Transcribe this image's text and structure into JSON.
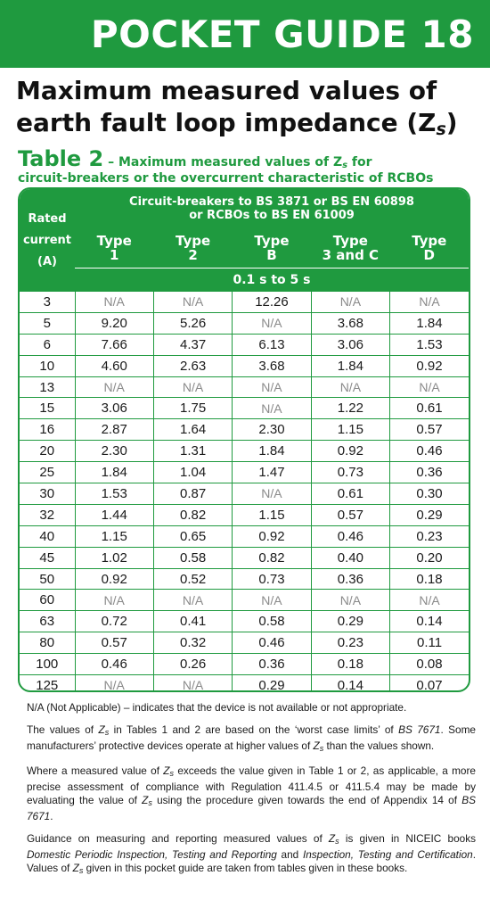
{
  "banner": {
    "title": "POCKET GUIDE 18"
  },
  "title": {
    "text": "Maximum measured values of earth fault loop impedance (Z",
    "subscript": "s",
    "close": ")"
  },
  "table_heading": {
    "label": "Table 2",
    "desc_pre": " – Maximum measured values of Z",
    "desc_sub": "s",
    "desc_post": " for",
    "line2": "circuit-breakers or the overcurrent characteristic of RCBOs"
  },
  "table": {
    "rated_header": [
      "Rated",
      "current",
      "(A)"
    ],
    "span_header": [
      "Circuit-breakers to BS 3871 or BS EN 60898",
      "or RCBOs to BS EN 61009"
    ],
    "types": [
      {
        "line1": "Type",
        "line2": "1"
      },
      {
        "line1": "Type",
        "line2": "2"
      },
      {
        "line1": "Type",
        "line2": "B"
      },
      {
        "line1": "Type",
        "line2": "3 and C"
      },
      {
        "line1": "Type",
        "line2": "D"
      }
    ],
    "time_range": "0.1 s to 5 s",
    "rows": [
      [
        "3",
        "N/A",
        "N/A",
        "12.26",
        "N/A",
        "N/A"
      ],
      [
        "5",
        "9.20",
        "5.26",
        "N/A",
        "3.68",
        "1.84"
      ],
      [
        "6",
        "7.66",
        "4.37",
        "6.13",
        "3.06",
        "1.53"
      ],
      [
        "10",
        "4.60",
        "2.63",
        "3.68",
        "1.84",
        "0.92"
      ],
      [
        "13",
        "N/A",
        "N/A",
        "N/A",
        "N/A",
        "N/A"
      ],
      [
        "15",
        "3.06",
        "1.75",
        "N/A",
        "1.22",
        "0.61"
      ],
      [
        "16",
        "2.87",
        "1.64",
        "2.30",
        "1.15",
        "0.57"
      ],
      [
        "20",
        "2.30",
        "1.31",
        "1.84",
        "0.92",
        "0.46"
      ],
      [
        "25",
        "1.84",
        "1.04",
        "1.47",
        "0.73",
        "0.36"
      ],
      [
        "30",
        "1.53",
        "0.87",
        "N/A",
        "0.61",
        "0.30"
      ],
      [
        "32",
        "1.44",
        "0.82",
        "1.15",
        "0.57",
        "0.29"
      ],
      [
        "40",
        "1.15",
        "0.65",
        "0.92",
        "0.46",
        "0.23"
      ],
      [
        "45",
        "1.02",
        "0.58",
        "0.82",
        "0.40",
        "0.20"
      ],
      [
        "50",
        "0.92",
        "0.52",
        "0.73",
        "0.36",
        "0.18"
      ],
      [
        "60",
        "N/A",
        "N/A",
        "N/A",
        "N/A",
        "N/A"
      ],
      [
        "63",
        "0.72",
        "0.41",
        "0.58",
        "0.29",
        "0.14"
      ],
      [
        "80",
        "0.57",
        "0.32",
        "0.46",
        "0.23",
        "0.11"
      ],
      [
        "100",
        "0.46",
        "0.26",
        "0.36",
        "0.18",
        "0.08"
      ],
      [
        "125",
        "N/A",
        "N/A",
        "0.29",
        "0.14",
        "0.07"
      ]
    ]
  },
  "notes": {
    "na_note": "N/A (Not Applicable) – indicates that the device is not available or not appropriate.",
    "p1": [
      "The values of ",
      "Z",
      "s",
      " in Tables 1 and 2 are based on the ‘worst case limits’ of ",
      "BS 7671",
      ". Some manufacturers’ protective devices operate at higher values of ",
      "Z",
      "s",
      " than the values shown."
    ],
    "p2": [
      "Where a measured value of ",
      "Z",
      "s",
      " exceeds the value given in Table 1 or 2, as applicable, a more precise assessment of compliance with Regulation 411.4.5 or 411.5.4 may be made by evaluating the value of ",
      "Z",
      "s",
      " using the procedure given towards the end of Appendix 14 of ",
      "BS 7671",
      "."
    ],
    "p3": [
      "Guidance on measuring and reporting measured values of ",
      "Z",
      "s",
      " is given in NICEIC books ",
      "Domestic Periodic Inspection, Testing and Reporting",
      " and ",
      "Inspection, Testing and Certification",
      ". Values of ",
      "Z",
      "s",
      " given in this pocket guide are taken from tables given in these books."
    ]
  },
  "colors": {
    "brand_green": "#1f9a3f",
    "na_gray": "#8a8a8a"
  }
}
